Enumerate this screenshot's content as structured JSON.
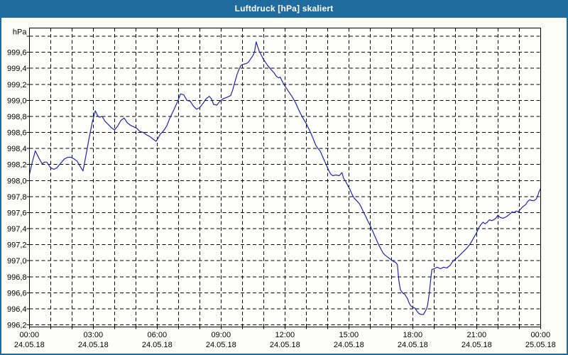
{
  "window": {
    "title": "Luftdruck [hPa] skaliert"
  },
  "colors": {
    "titlebar": "#1f6b9e",
    "window_frame": "#1f6b9e",
    "window_background": "#fdfdf8",
    "plot_background": "#fefefb",
    "grid": "#000000",
    "axis": "#000000",
    "line": "#2222ae",
    "label_text": "#000000",
    "title_text": "#ffffff"
  },
  "chart_data": {
    "type": "line",
    "title": "Luftdruck [hPa] skaliert",
    "ylabel": "hPa",
    "xlabel": "",
    "legend": "none",
    "grid": "dashed",
    "ylim": [
      996.1,
      999.9
    ],
    "y_gridline_top": 999.8,
    "y_gridline_bottom": 996.2,
    "y_tick_step": 0.2,
    "y_ticks": [
      {
        "value": 999.6,
        "label": "999,6"
      },
      {
        "value": 999.4,
        "label": "999,4"
      },
      {
        "value": 999.2,
        "label": "999,2"
      },
      {
        "value": 999.0,
        "label": "999,0"
      },
      {
        "value": 998.8,
        "label": "998,8"
      },
      {
        "value": 998.6,
        "label": "998,6"
      },
      {
        "value": 998.4,
        "label": "998,4"
      },
      {
        "value": 998.2,
        "label": "998,2"
      },
      {
        "value": 998.0,
        "label": "998,0"
      },
      {
        "value": 997.8,
        "label": "997,8"
      },
      {
        "value": 997.6,
        "label": "997,6"
      },
      {
        "value": 997.4,
        "label": "997,4"
      },
      {
        "value": 997.2,
        "label": "997,2"
      },
      {
        "value": 997.0,
        "label": "997,0"
      },
      {
        "value": 996.8,
        "label": "996,8"
      },
      {
        "value": 996.6,
        "label": "996,6"
      },
      {
        "value": 996.4,
        "label": "996,4"
      },
      {
        "value": 996.2,
        "label": "996,2"
      }
    ],
    "xlim_hours": [
      0,
      24
    ],
    "x_gridline_every_hours": 1,
    "x_ticks": [
      {
        "hour": 0,
        "time": "00:00",
        "date": "24.05.18"
      },
      {
        "hour": 3,
        "time": "03:00",
        "date": "24.05.18"
      },
      {
        "hour": 6,
        "time": "06:00",
        "date": "24.05.18"
      },
      {
        "hour": 9,
        "time": "09:00",
        "date": "24.05.18"
      },
      {
        "hour": 12,
        "time": "12:00",
        "date": "24.05.18"
      },
      {
        "hour": 15,
        "time": "15:00",
        "date": "24.05.18"
      },
      {
        "hour": 18,
        "time": "18:00",
        "date": "24.05.18"
      },
      {
        "hour": 21,
        "time": "21:00",
        "date": "24.05.18"
      },
      {
        "hour": 24,
        "time": "00:00",
        "date": "25.05.18"
      }
    ],
    "series": [
      {
        "name": "Luftdruck",
        "unit": "hPa",
        "points": [
          [
            0,
            998.07
          ],
          [
            0.13,
            998.22
          ],
          [
            0.28,
            998.37
          ],
          [
            0.45,
            998.28
          ],
          [
            0.6,
            998.21
          ],
          [
            0.72,
            998.23
          ],
          [
            0.82,
            998.23
          ],
          [
            1,
            998.16
          ],
          [
            1.15,
            998.14
          ],
          [
            1.3,
            998.16
          ],
          [
            1.45,
            998.21
          ],
          [
            1.65,
            998.27
          ],
          [
            1.8,
            998.29
          ],
          [
            1.95,
            998.29
          ],
          [
            2.1,
            998.27
          ],
          [
            2.25,
            998.24
          ],
          [
            2.4,
            998.17
          ],
          [
            2.52,
            998.12
          ],
          [
            2.65,
            998.3
          ],
          [
            2.8,
            998.52
          ],
          [
            2.95,
            998.72
          ],
          [
            3.1,
            998.87
          ],
          [
            3.2,
            998.81
          ],
          [
            3.3,
            998.79
          ],
          [
            3.42,
            998.8
          ],
          [
            3.55,
            998.74
          ],
          [
            3.7,
            998.7
          ],
          [
            3.85,
            998.66
          ],
          [
            4,
            998.63
          ],
          [
            4.15,
            998.68
          ],
          [
            4.3,
            998.75
          ],
          [
            4.45,
            998.78
          ],
          [
            4.6,
            998.72
          ],
          [
            4.75,
            998.69
          ],
          [
            4.9,
            998.67
          ],
          [
            5.05,
            998.65
          ],
          [
            5.2,
            998.61
          ],
          [
            5.35,
            998.6
          ],
          [
            5.5,
            998.57
          ],
          [
            5.65,
            998.55
          ],
          [
            5.8,
            998.52
          ],
          [
            5.95,
            998.49
          ],
          [
            6.05,
            998.53
          ],
          [
            6.15,
            998.58
          ],
          [
            6.3,
            998.62
          ],
          [
            6.45,
            998.68
          ],
          [
            6.6,
            998.78
          ],
          [
            6.8,
            998.89
          ],
          [
            6.95,
            998.98
          ],
          [
            7.1,
            999.08
          ],
          [
            7.25,
            999.07
          ],
          [
            7.4,
            999
          ],
          [
            7.55,
            998.99
          ],
          [
            7.7,
            998.93
          ],
          [
            7.85,
            998.89
          ],
          [
            8,
            998.91
          ],
          [
            8.15,
            998.96
          ],
          [
            8.3,
            999.02
          ],
          [
            8.45,
            999.05
          ],
          [
            8.55,
            999.02
          ],
          [
            8.65,
            998.95
          ],
          [
            8.8,
            998.94
          ],
          [
            8.95,
            998.99
          ],
          [
            9.1,
            999.02
          ],
          [
            9.3,
            999.04
          ],
          [
            9.45,
            999.06
          ],
          [
            9.55,
            999.13
          ],
          [
            9.65,
            999.23
          ],
          [
            9.75,
            999.32
          ],
          [
            9.85,
            999.39
          ],
          [
            9.95,
            999.44
          ],
          [
            10.05,
            999.45
          ],
          [
            10.2,
            999.46
          ],
          [
            10.3,
            999.48
          ],
          [
            10.4,
            999.52
          ],
          [
            10.5,
            999.56
          ],
          [
            10.57,
            999.6
          ],
          [
            10.65,
            999.73
          ],
          [
            10.72,
            999.67
          ],
          [
            10.8,
            999.61
          ],
          [
            10.9,
            999.56
          ],
          [
            11,
            999.51
          ],
          [
            11.1,
            999.47
          ],
          [
            11.2,
            999.43
          ],
          [
            11.3,
            999.4
          ],
          [
            11.4,
            999.37
          ],
          [
            11.5,
            999.34
          ],
          [
            11.6,
            999.3
          ],
          [
            11.7,
            999.28
          ],
          [
            11.78,
            999.29
          ],
          [
            11.85,
            999.25
          ],
          [
            11.95,
            999.2
          ],
          [
            12.05,
            999.16
          ],
          [
            12.2,
            999.1
          ],
          [
            12.35,
            999.04
          ],
          [
            12.5,
            998.97
          ],
          [
            12.65,
            998.88
          ],
          [
            12.8,
            998.8
          ],
          [
            13,
            998.71
          ],
          [
            13.15,
            998.63
          ],
          [
            13.3,
            998.54
          ],
          [
            13.45,
            998.44
          ],
          [
            13.55,
            998.4
          ],
          [
            13.65,
            998.37
          ],
          [
            13.75,
            998.31
          ],
          [
            13.85,
            998.25
          ],
          [
            13.95,
            998.19
          ],
          [
            14.05,
            998.13
          ],
          [
            14.15,
            998.08
          ],
          [
            14.25,
            998.06
          ],
          [
            14.4,
            998.07
          ],
          [
            14.55,
            998.06
          ],
          [
            14.68,
            998.1
          ],
          [
            14.75,
            998.03
          ],
          [
            14.85,
            997.99
          ],
          [
            14.95,
            997.94
          ],
          [
            15.05,
            997.89
          ],
          [
            15.15,
            997.83
          ],
          [
            15.25,
            997.78
          ],
          [
            15.4,
            997.74
          ],
          [
            15.5,
            997.71
          ],
          [
            15.6,
            997.66
          ],
          [
            15.7,
            997.6
          ],
          [
            15.8,
            997.55
          ],
          [
            15.9,
            997.49
          ],
          [
            16,
            997.44
          ],
          [
            16.1,
            997.38
          ],
          [
            16.2,
            997.32
          ],
          [
            16.3,
            997.26
          ],
          [
            16.4,
            997.2
          ],
          [
            16.5,
            997.15
          ],
          [
            16.6,
            997.1
          ],
          [
            16.7,
            997.07
          ],
          [
            16.85,
            997.04
          ],
          [
            17,
            997.01
          ],
          [
            17.1,
            996.99
          ],
          [
            17.2,
            996.98
          ],
          [
            17.28,
            996.95
          ],
          [
            17.35,
            996.75
          ],
          [
            17.42,
            996.64
          ],
          [
            17.52,
            996.6
          ],
          [
            17.63,
            996.58
          ],
          [
            17.75,
            996.53
          ],
          [
            17.82,
            996.48
          ],
          [
            17.9,
            996.44
          ],
          [
            18,
            996.42
          ],
          [
            18.1,
            996.41
          ],
          [
            18.2,
            996.37
          ],
          [
            18.3,
            996.34
          ],
          [
            18.4,
            996.33
          ],
          [
            18.5,
            996.33
          ],
          [
            18.57,
            996.36
          ],
          [
            18.65,
            996.4
          ],
          [
            18.7,
            996.45
          ],
          [
            18.78,
            996.6
          ],
          [
            18.85,
            996.78
          ],
          [
            18.9,
            996.89
          ],
          [
            19,
            996.9
          ],
          [
            19.15,
            996.92
          ],
          [
            19.3,
            996.9
          ],
          [
            19.45,
            996.92
          ],
          [
            19.6,
            996.91
          ],
          [
            19.75,
            996.94
          ],
          [
            19.85,
            996.98
          ],
          [
            19.95,
            997.01
          ],
          [
            20.1,
            997.04
          ],
          [
            20.25,
            997.08
          ],
          [
            20.4,
            997.12
          ],
          [
            20.55,
            997.16
          ],
          [
            20.7,
            997.21
          ],
          [
            20.85,
            997.28
          ],
          [
            21,
            997.35
          ],
          [
            21.1,
            997.41
          ],
          [
            21.2,
            997.45
          ],
          [
            21.3,
            997.48
          ],
          [
            21.4,
            997.46
          ],
          [
            21.5,
            997.48
          ],
          [
            21.6,
            997.51
          ],
          [
            21.7,
            997.5
          ],
          [
            21.8,
            997.51
          ],
          [
            21.9,
            997.53
          ],
          [
            22,
            997.57
          ],
          [
            22.1,
            997.54
          ],
          [
            22.25,
            997.53
          ],
          [
            22.4,
            997.55
          ],
          [
            22.55,
            997.58
          ],
          [
            22.67,
            997.61
          ],
          [
            22.75,
            997.6
          ],
          [
            22.85,
            997.62
          ],
          [
            22.95,
            997.61
          ],
          [
            23.05,
            997.64
          ],
          [
            23.15,
            997.67
          ],
          [
            23.3,
            997.7
          ],
          [
            23.4,
            997.74
          ],
          [
            23.5,
            997.76
          ],
          [
            23.6,
            997.75
          ],
          [
            23.7,
            997.75
          ],
          [
            23.8,
            997.77
          ],
          [
            23.87,
            997.81
          ],
          [
            23.93,
            997.86
          ],
          [
            24,
            997.9
          ]
        ]
      }
    ]
  }
}
